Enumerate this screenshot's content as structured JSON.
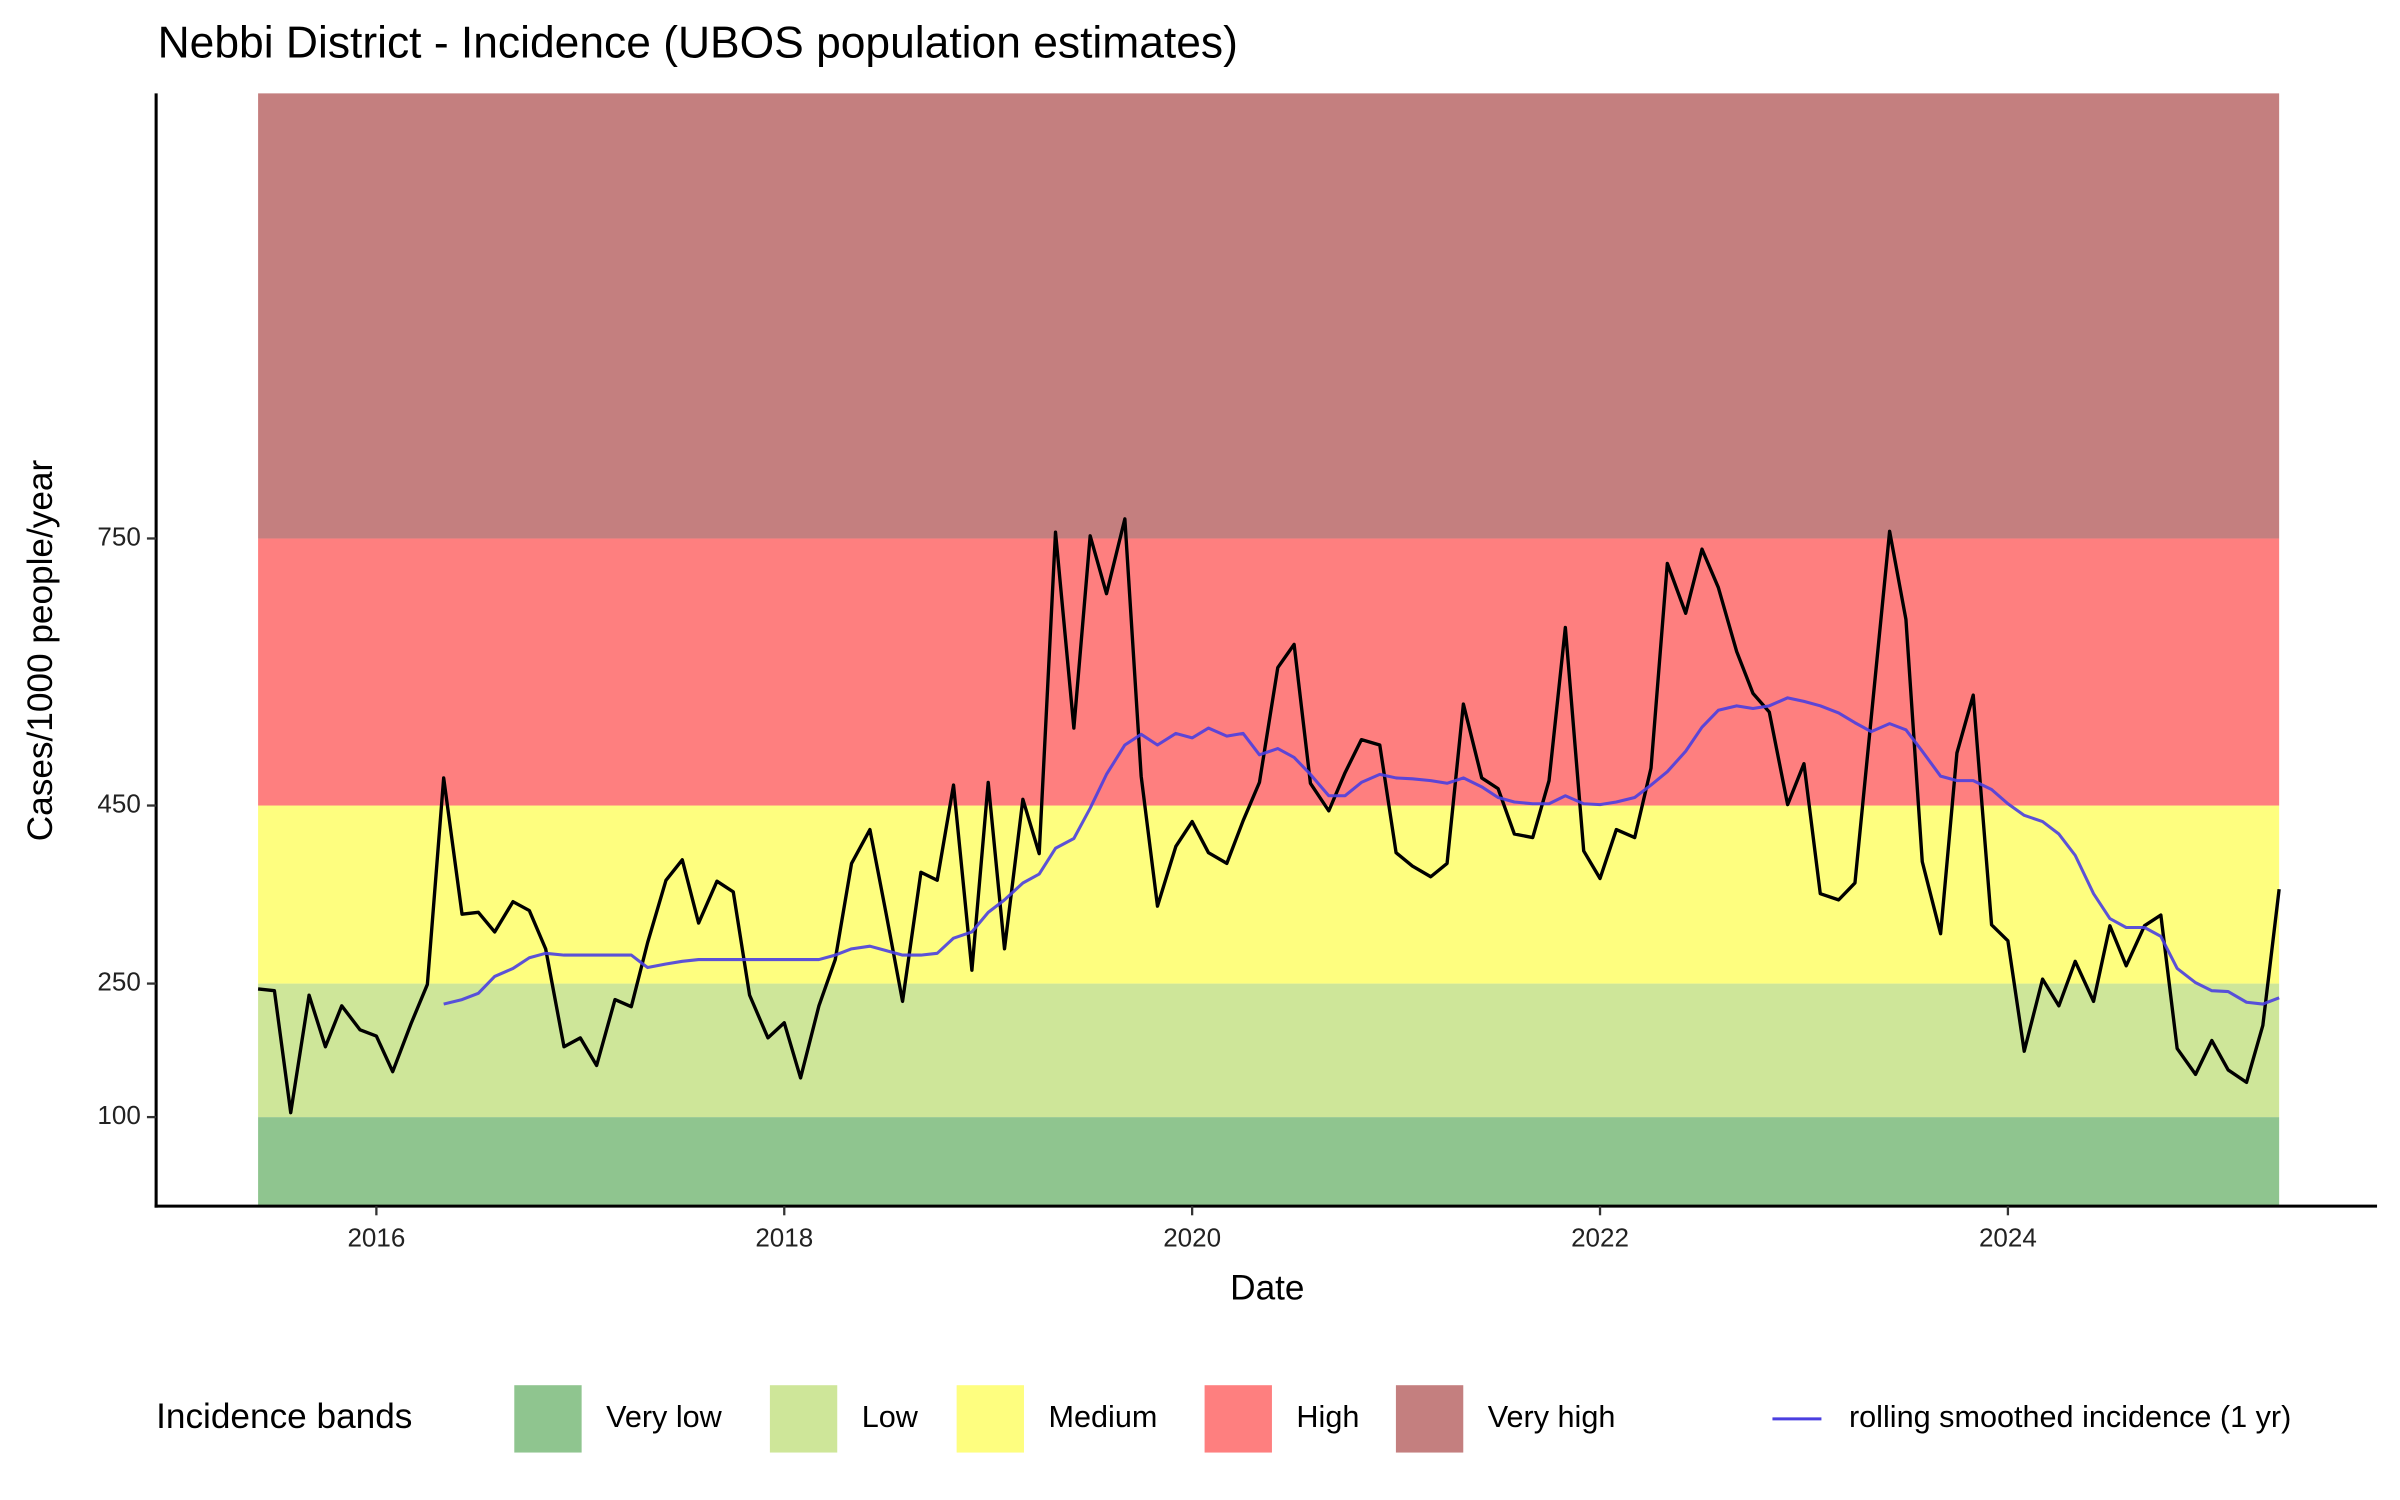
{
  "chart_data": {
    "type": "line",
    "title": "Nebbi District - Incidence (UBOS population estimates)",
    "x_label": "Date",
    "y_label": "Cases/1000 people/year",
    "xlim": [
      2014.92,
      2025.81
    ],
    "xticks": [
      2016,
      2018,
      2020,
      2022,
      2024
    ],
    "ylim": [
      0,
      1250
    ],
    "yticks": [
      100,
      250,
      450,
      750
    ],
    "legend_title": "Incidence bands",
    "legend_position": "bottom",
    "bands": [
      {
        "name": "Very low",
        "color": "#8fc58f",
        "range": [
          0,
          100
        ]
      },
      {
        "name": "Low",
        "color": "#cee699",
        "range": [
          100,
          250
        ]
      },
      {
        "name": "Medium",
        "color": "#fefe7f",
        "range": [
          250,
          450
        ]
      },
      {
        "name": "High",
        "color": "#fe7f7f",
        "range": [
          450,
          750
        ]
      },
      {
        "name": "Very high",
        "color": "#c47f7f",
        "range": [
          750,
          1250
        ]
      }
    ],
    "x": [
      2015.42,
      2015.5,
      2015.58,
      2015.67,
      2015.75,
      2015.83,
      2015.92,
      2016.0,
      2016.08,
      2016.17,
      2016.25,
      2016.33,
      2016.42,
      2016.5,
      2016.58,
      2016.67,
      2016.75,
      2016.83,
      2016.92,
      2017.0,
      2017.08,
      2017.17,
      2017.25,
      2017.33,
      2017.42,
      2017.5,
      2017.58,
      2017.67,
      2017.75,
      2017.83,
      2017.92,
      2018.0,
      2018.08,
      2018.17,
      2018.25,
      2018.33,
      2018.42,
      2018.5,
      2018.58,
      2018.67,
      2018.75,
      2018.83,
      2018.92,
      2019.0,
      2019.08,
      2019.17,
      2019.25,
      2019.33,
      2019.42,
      2019.5,
      2019.58,
      2019.67,
      2019.75,
      2019.83,
      2019.92,
      2020.0,
      2020.08,
      2020.17,
      2020.25,
      2020.33,
      2020.42,
      2020.5,
      2020.58,
      2020.67,
      2020.75,
      2020.83,
      2020.92,
      2021.0,
      2021.08,
      2021.17,
      2021.25,
      2021.33,
      2021.42,
      2021.5,
      2021.58,
      2021.67,
      2021.75,
      2021.83,
      2021.92,
      2022.0,
      2022.08,
      2022.17,
      2022.25,
      2022.33,
      2022.42,
      2022.5,
      2022.58,
      2022.67,
      2022.75,
      2022.83,
      2022.92,
      2023.0,
      2023.08,
      2023.17,
      2023.25,
      2023.33,
      2023.42,
      2023.5,
      2023.58,
      2023.67,
      2023.75,
      2023.83,
      2023.92,
      2024.0,
      2024.08,
      2024.17,
      2024.25,
      2024.33,
      2024.42,
      2024.5,
      2024.58,
      2024.67,
      2024.75,
      2024.83,
      2024.92,
      2025.0,
      2025.08,
      2025.17,
      2025.25,
      2025.33
    ],
    "series": [
      {
        "color": "#000000",
        "values": [
          244,
          242,
          105,
          237,
          179,
          225,
          198,
          191,
          151,
          205,
          249,
          481,
          328,
          330,
          308,
          342,
          332,
          289,
          179,
          189,
          158,
          232,
          224,
          296,
          366,
          389,
          318,
          365,
          353,
          237,
          189,
          206,
          144,
          225,
          277,
          385,
          423,
          328,
          230,
          375,
          366,
          473,
          265,
          476,
          289,
          457,
          396,
          757,
          537,
          753,
          688,
          772,
          483,
          337,
          404,
          432,
          397,
          385,
          433,
          476,
          605,
          631,
          475,
          444,
          487,
          524,
          518,
          397,
          382,
          370,
          385,
          564,
          481,
          469,
          418,
          414,
          478,
          650,
          399,
          368,
          423,
          414,
          492,
          722,
          666,
          738,
          695,
          623,
          576,
          555,
          451,
          497,
          351,
          344,
          363,
          549,
          758,
          659,
          387,
          306,
          509,
          574,
          316,
          298,
          174,
          255,
          225,
          275,
          230,
          315,
          270,
          315,
          327,
          177,
          148,
          186,
          153,
          139,
          203,
          356
        ]
      },
      {
        "name": "rolling smoothed incidence (1 yr)",
        "color": "#4a3fe0",
        "values": [
          null,
          null,
          null,
          null,
          null,
          null,
          null,
          null,
          null,
          null,
          null,
          227,
          232,
          239,
          258,
          267,
          279,
          284,
          282,
          282,
          282,
          282,
          282,
          268,
          272,
          275,
          277,
          277,
          277,
          277,
          277,
          277,
          277,
          277,
          282,
          289,
          292,
          287,
          282,
          282,
          284,
          301,
          308,
          330,
          344,
          363,
          373,
          402,
          413,
          447,
          485,
          518,
          530,
          518,
          531,
          526,
          537,
          528,
          531,
          507,
          514,
          504,
          485,
          461,
          461,
          476,
          485,
          481,
          480,
          478,
          475,
          481,
          471,
          459,
          454,
          452,
          452,
          461,
          452,
          451,
          454,
          459,
          473,
          488,
          511,
          538,
          557,
          562,
          559,
          562,
          571,
          567,
          562,
          554,
          543,
          533,
          542,
          535,
          511,
          483,
          478,
          478,
          468,
          452,
          439,
          432,
          418,
          394,
          351,
          323,
          313,
          313,
          303,
          267,
          251,
          242,
          241,
          229,
          227,
          234
        ]
      }
    ]
  }
}
